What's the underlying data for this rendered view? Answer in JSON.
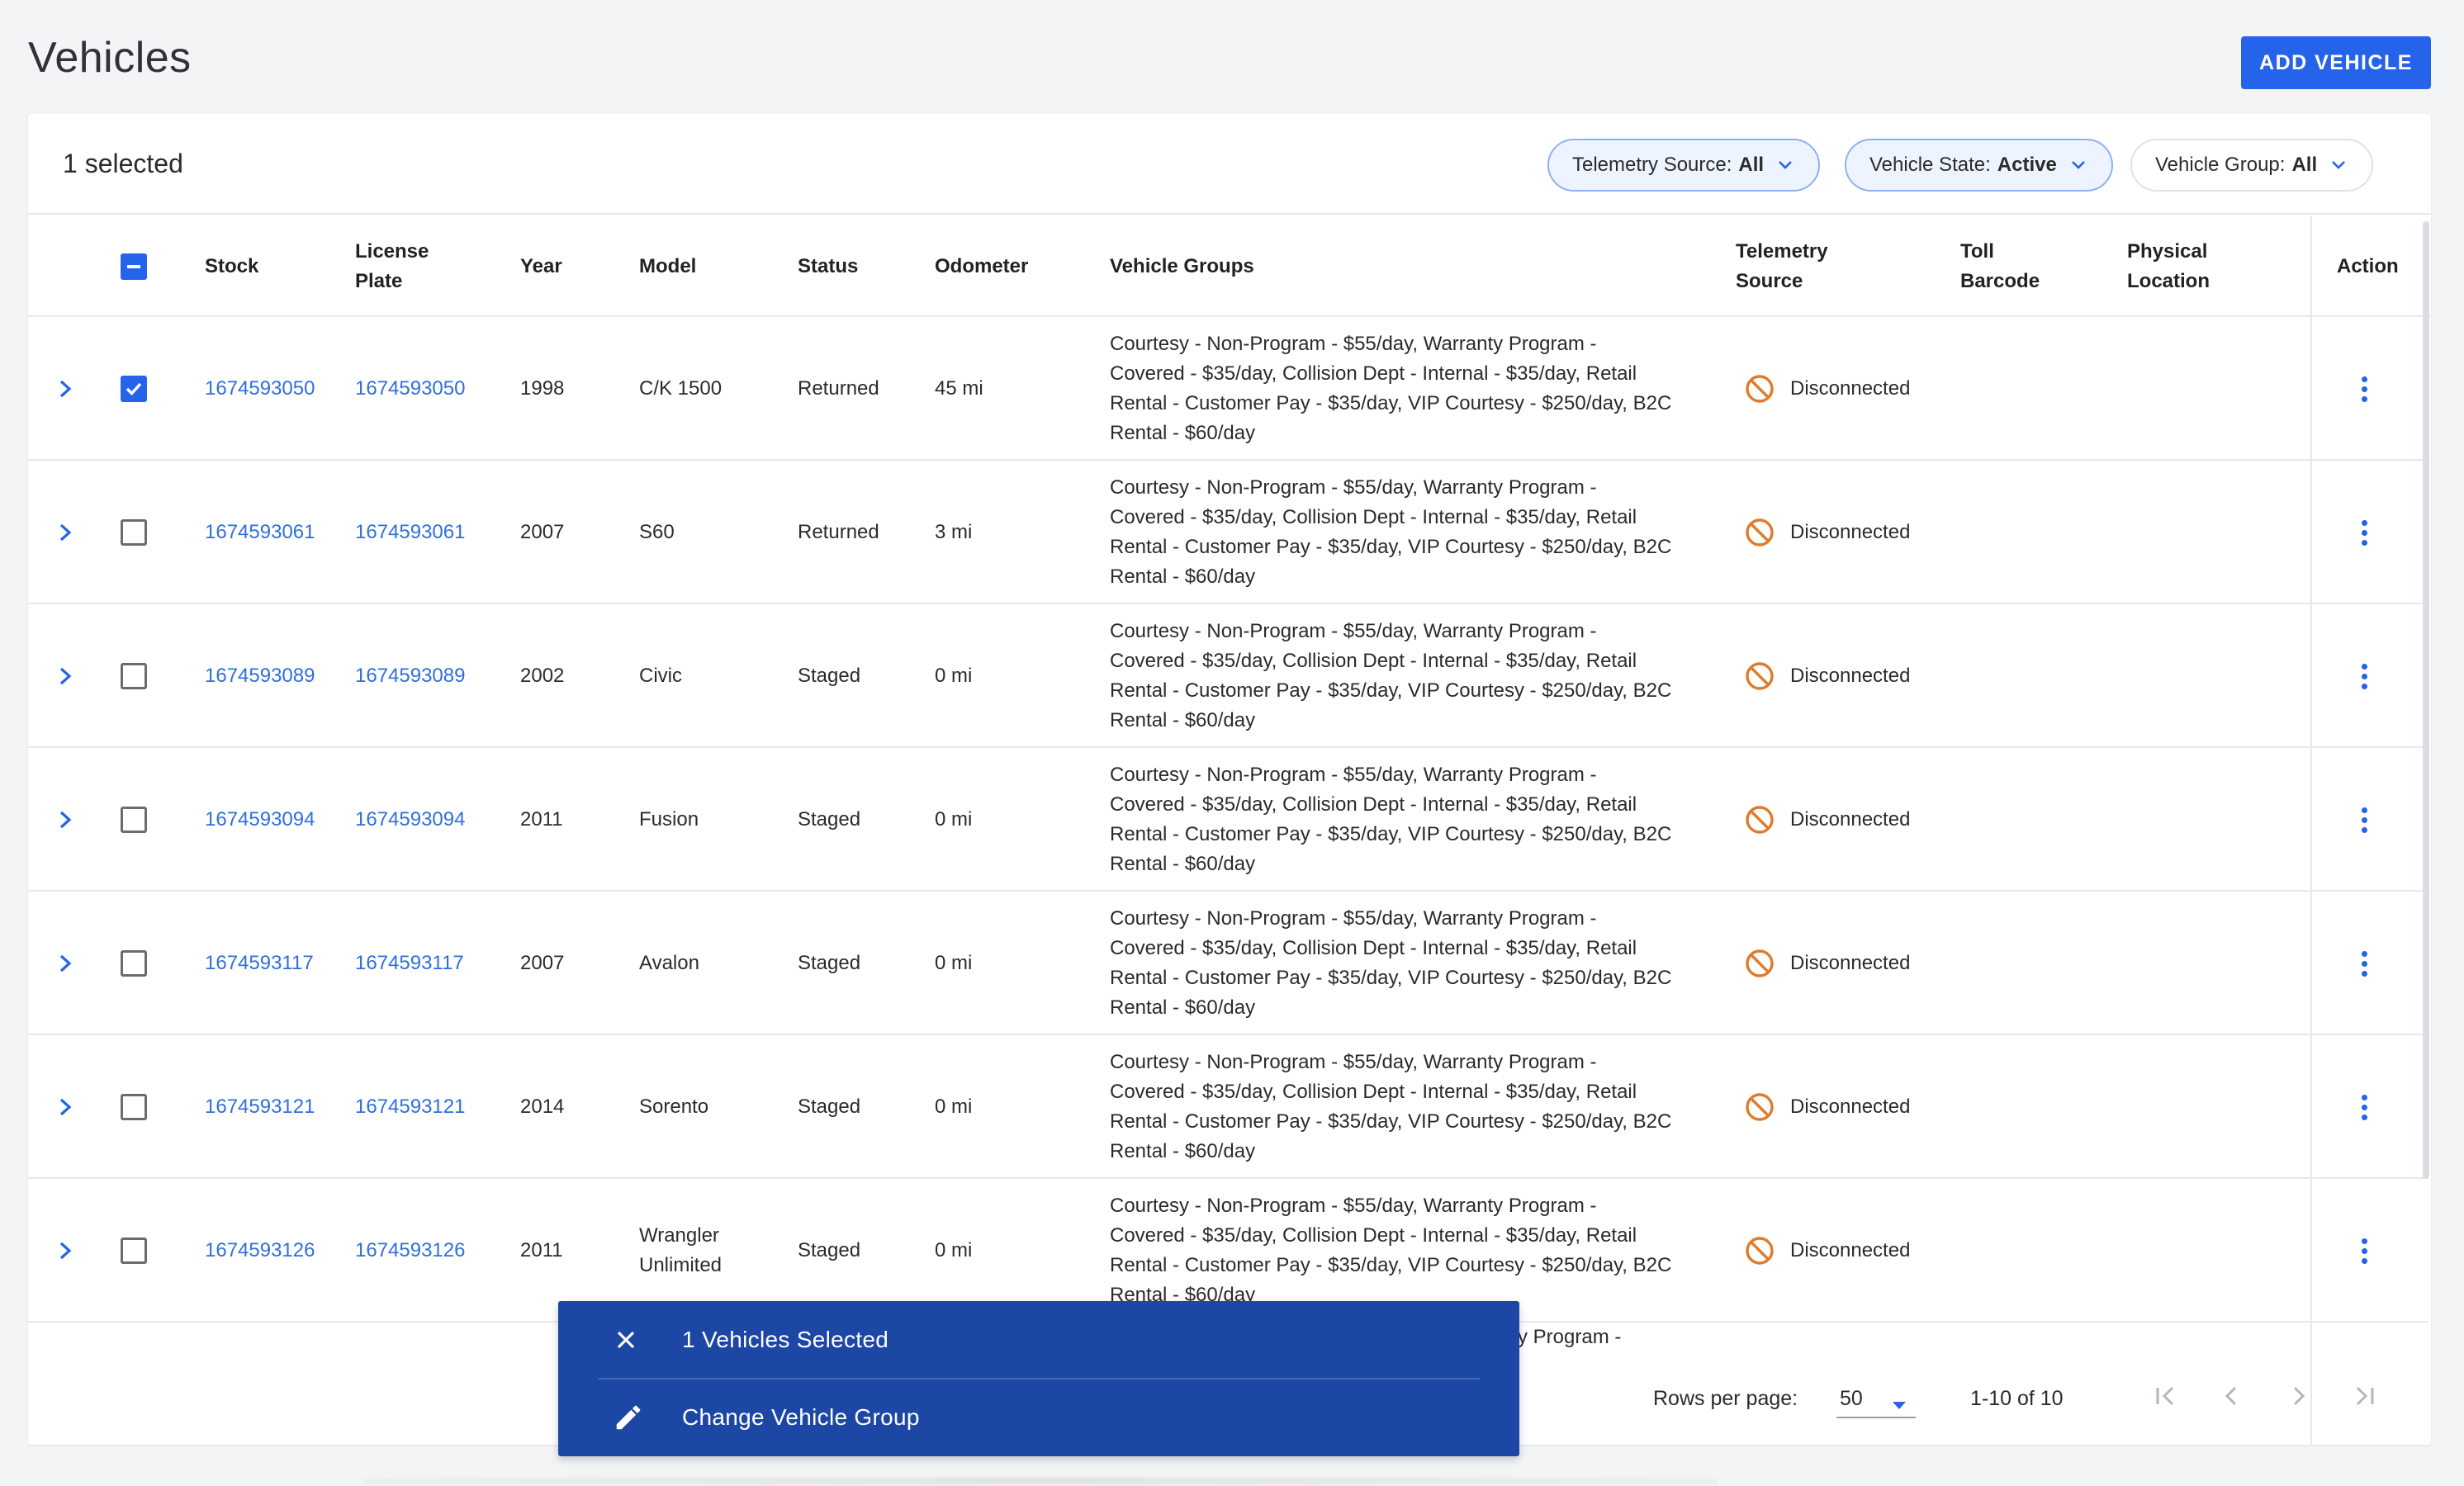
{
  "page": {
    "title": "Vehicles",
    "add_button": "ADD VEHICLE"
  },
  "toolbar": {
    "selected": "1 selected",
    "filters": [
      {
        "label": "Telemetry Source:",
        "value": "All"
      },
      {
        "label": "Vehicle State:",
        "value": "Active"
      },
      {
        "label": "Vehicle Group:",
        "value": "All"
      }
    ]
  },
  "columns": {
    "stock": "Stock",
    "plate_1": "License",
    "plate_2": "Plate",
    "year": "Year",
    "model": "Model",
    "status": "Status",
    "odometer": "Odometer",
    "groups": "Vehicle Groups",
    "tele_1": "Telemetry",
    "tele_2": "Source",
    "toll_1": "Toll",
    "toll_2": "Barcode",
    "loc_1": "Physical",
    "loc_2": "Location",
    "action": "Action"
  },
  "groups_line_1": "Courtesy - Non-Program - $55/day, Warranty Program -",
  "groups_line_2": "Covered - $35/day, Collision Dept - Internal - $35/day, Retail",
  "groups_line_3": "Rental - Customer Pay - $35/day, VIP Courtesy - $250/day, B2C",
  "groups_line_4": "Rental - $60/day",
  "rows": [
    {
      "stock": "1674593050",
      "plate": "1674593050",
      "year": "1998",
      "model_1": "C/K 1500",
      "model_2": "",
      "status": "Returned",
      "odometer": "45 mi",
      "telemetry": "Disconnected",
      "checked": true
    },
    {
      "stock": "1674593061",
      "plate": "1674593061",
      "year": "2007",
      "model_1": "S60",
      "model_2": "",
      "status": "Returned",
      "odometer": "3 mi",
      "telemetry": "Disconnected",
      "checked": false
    },
    {
      "stock": "1674593089",
      "plate": "1674593089",
      "year": "2002",
      "model_1": "Civic",
      "model_2": "",
      "status": "Staged",
      "odometer": "0 mi",
      "telemetry": "Disconnected",
      "checked": false
    },
    {
      "stock": "1674593094",
      "plate": "1674593094",
      "year": "2011",
      "model_1": "Fusion",
      "model_2": "",
      "status": "Staged",
      "odometer": "0 mi",
      "telemetry": "Disconnected",
      "checked": false
    },
    {
      "stock": "1674593117",
      "plate": "1674593117",
      "year": "2007",
      "model_1": "Avalon",
      "model_2": "",
      "status": "Staged",
      "odometer": "0 mi",
      "telemetry": "Disconnected",
      "checked": false
    },
    {
      "stock": "1674593121",
      "plate": "1674593121",
      "year": "2014",
      "model_1": "Sorento",
      "model_2": "",
      "status": "Staged",
      "odometer": "0 mi",
      "telemetry": "Disconnected",
      "checked": false
    },
    {
      "stock": "1674593126",
      "plate": "1674593126",
      "year": "2011",
      "model_1": "Wrangler",
      "model_2": "Unlimited",
      "status": "Staged",
      "odometer": "0 mi",
      "telemetry": "Disconnected",
      "checked": false
    }
  ],
  "partial_row_text": "y Program -",
  "pagination": {
    "rows_per_page_label": "Rows per page:",
    "rows_per_page": "50",
    "range": "1-10 of 10"
  },
  "snackbar": {
    "selected": "1 Vehicles Selected",
    "change_group": "Change Vehicle Group"
  },
  "colors": {
    "primary": "#2563eb",
    "link": "#2f6fdd",
    "disconnected": "#e07a2c",
    "snackbar": "#1d47a5"
  }
}
